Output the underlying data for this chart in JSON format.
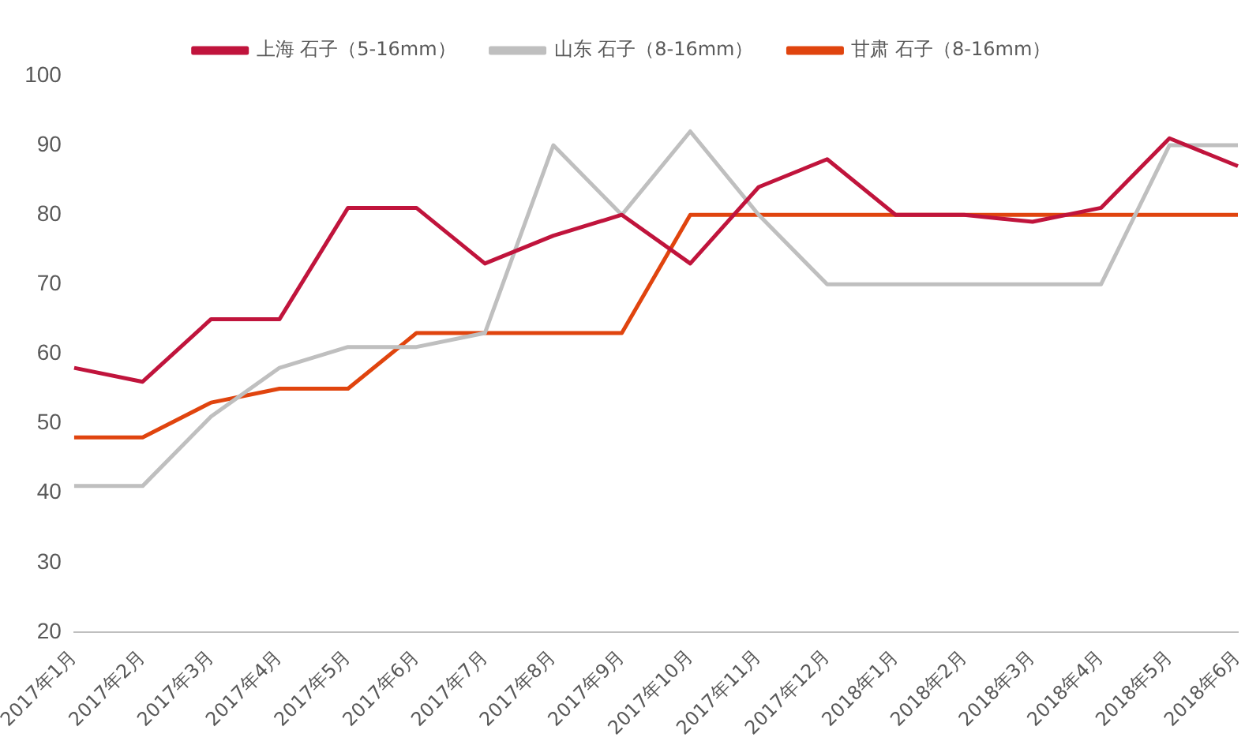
{
  "chart_data": {
    "type": "line",
    "categories": [
      "2017年1月",
      "2017年2月",
      "2017年3月",
      "2017年4月",
      "2017年5月",
      "2017年6月",
      "2017年7月",
      "2017年8月",
      "2017年9月",
      "2017年10月",
      "2017年11月",
      "2017年12月",
      "2018年1月",
      "2018年2月",
      "2018年3月",
      "2018年4月",
      "2018年5月",
      "2018年6月"
    ],
    "series": [
      {
        "name": "上海 石子（5-16mm）",
        "color": "#c0143c",
        "values": [
          58,
          56,
          65,
          65,
          81,
          81,
          73,
          77,
          80,
          73,
          84,
          88,
          80,
          80,
          79,
          81,
          91,
          87
        ]
      },
      {
        "name": "山东 石子（8-16mm）",
        "color": "#bfbfbf",
        "values": [
          41,
          41,
          51,
          58,
          61,
          61,
          63,
          90,
          80,
          92,
          80,
          70,
          70,
          70,
          70,
          70,
          90,
          90
        ]
      },
      {
        "name": "甘肃 石子（8-16mm）",
        "color": "#e0440e",
        "values": [
          48,
          48,
          53,
          55,
          55,
          63,
          63,
          63,
          63,
          80,
          80,
          80,
          80,
          80,
          80,
          80,
          80,
          80
        ]
      }
    ],
    "ylim": [
      20,
      100
    ],
    "yticks": [
      20,
      30,
      40,
      50,
      60,
      70,
      80,
      90,
      100
    ],
    "grid": false,
    "legend": "top",
    "marker": "none",
    "line_style": "solid"
  }
}
